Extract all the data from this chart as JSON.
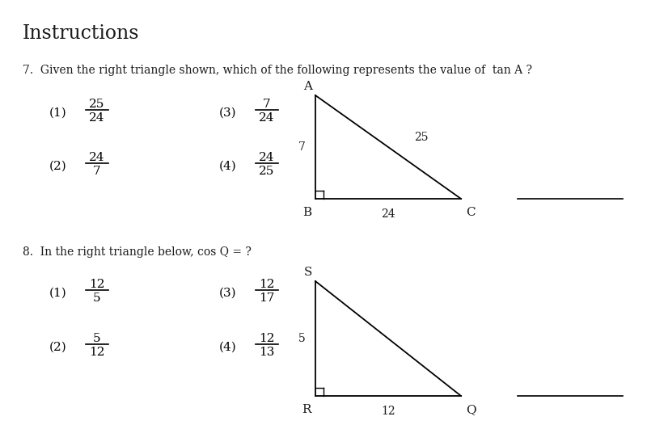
{
  "bg_color": "#ffffff",
  "title": "Instructions",
  "q7_text": "7.  Given the right triangle shown, which of the following represents the value of  tan A ?",
  "q8_text": "8.  In the right triangle below, cos Q = ?",
  "font_color": "#1a1a1a",
  "line_color": "#000000"
}
